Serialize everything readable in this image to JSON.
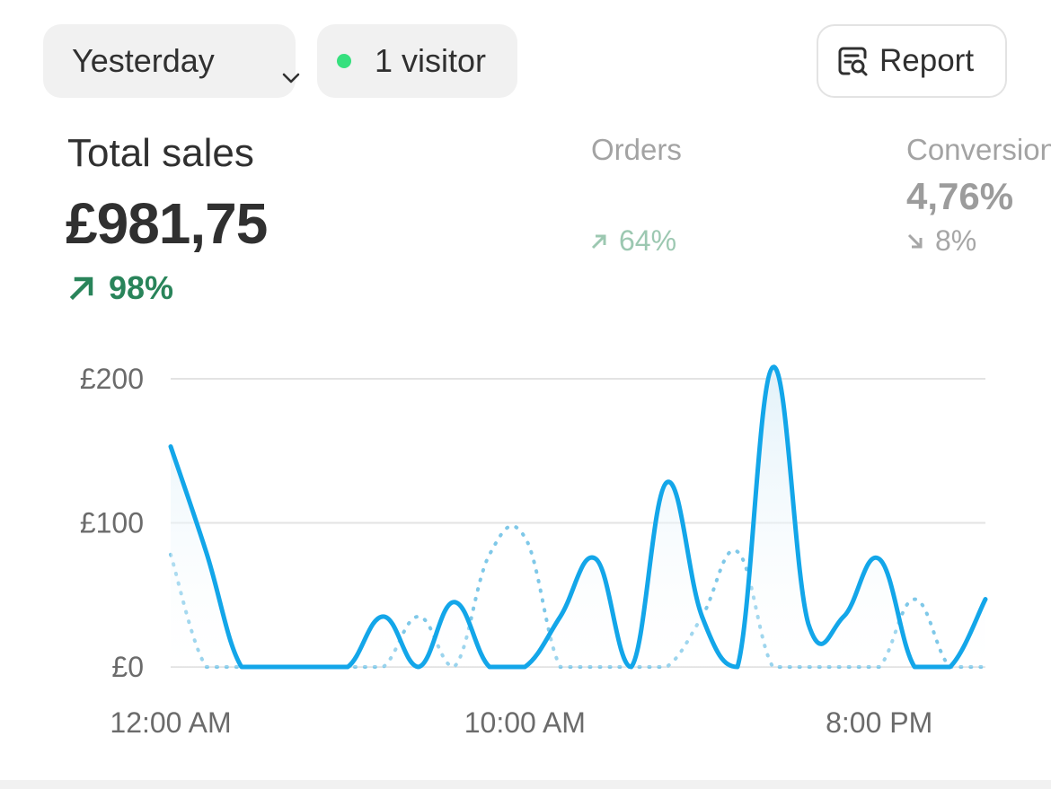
{
  "toolbar": {
    "date_range": "Yesterday",
    "visitors": "1 visitor",
    "visitor_status_color": "#36e07e",
    "report_label": "Report",
    "icons": {
      "date_range": "chevron-down-icon",
      "report": "report-search-icon"
    }
  },
  "metrics": {
    "total_sales": {
      "title": "Total sales",
      "value": "£981,75",
      "change": "98%",
      "direction": "up",
      "color": "#29845a"
    },
    "orders": {
      "title": "Orders",
      "change": "64%",
      "direction": "up"
    },
    "conversion": {
      "title": "Conversion rate",
      "value": "4,76%",
      "change": "8%",
      "direction": "down"
    }
  },
  "chart_data": {
    "type": "line",
    "x": [
      "12:00 AM",
      "1:00 AM",
      "2:00 AM",
      "3:00 AM",
      "4:00 AM",
      "5:00 AM",
      "6:00 AM",
      "7:00 AM",
      "8:00 AM",
      "9:00 AM",
      "10:00 AM",
      "11:00 AM",
      "12:00 PM",
      "1:00 PM",
      "2:00 PM",
      "3:00 PM",
      "4:00 PM",
      "5:00 PM",
      "6:00 PM",
      "7:00 PM",
      "8:00 PM",
      "9:00 PM",
      "10:00 PM",
      "11:00 PM"
    ],
    "x_tick_labels": [
      "12:00 AM",
      "10:00 AM",
      "8:00 PM"
    ],
    "x_tick_indices": [
      0,
      10,
      20
    ],
    "y_ticks": [
      "£0",
      "£100",
      "£200"
    ],
    "y_tick_values": [
      0,
      100,
      200
    ],
    "ylim": [
      0,
      200
    ],
    "grid": true,
    "series": [
      {
        "style": "solid",
        "color": "#13a6e9",
        "values": [
          153,
          80,
          0,
          0,
          0,
          0,
          35,
          0,
          45,
          0,
          0,
          35,
          75,
          0,
          128,
          35,
          0,
          208,
          30,
          35,
          75,
          0,
          0,
          47
        ]
      },
      {
        "style": "dotted",
        "color": "#7fc8e8",
        "values": [
          78,
          0,
          0,
          0,
          0,
          0,
          0,
          35,
          0,
          78,
          90,
          0,
          0,
          0,
          0,
          35,
          80,
          0,
          0,
          0,
          0,
          47,
          0,
          0
        ]
      }
    ]
  }
}
